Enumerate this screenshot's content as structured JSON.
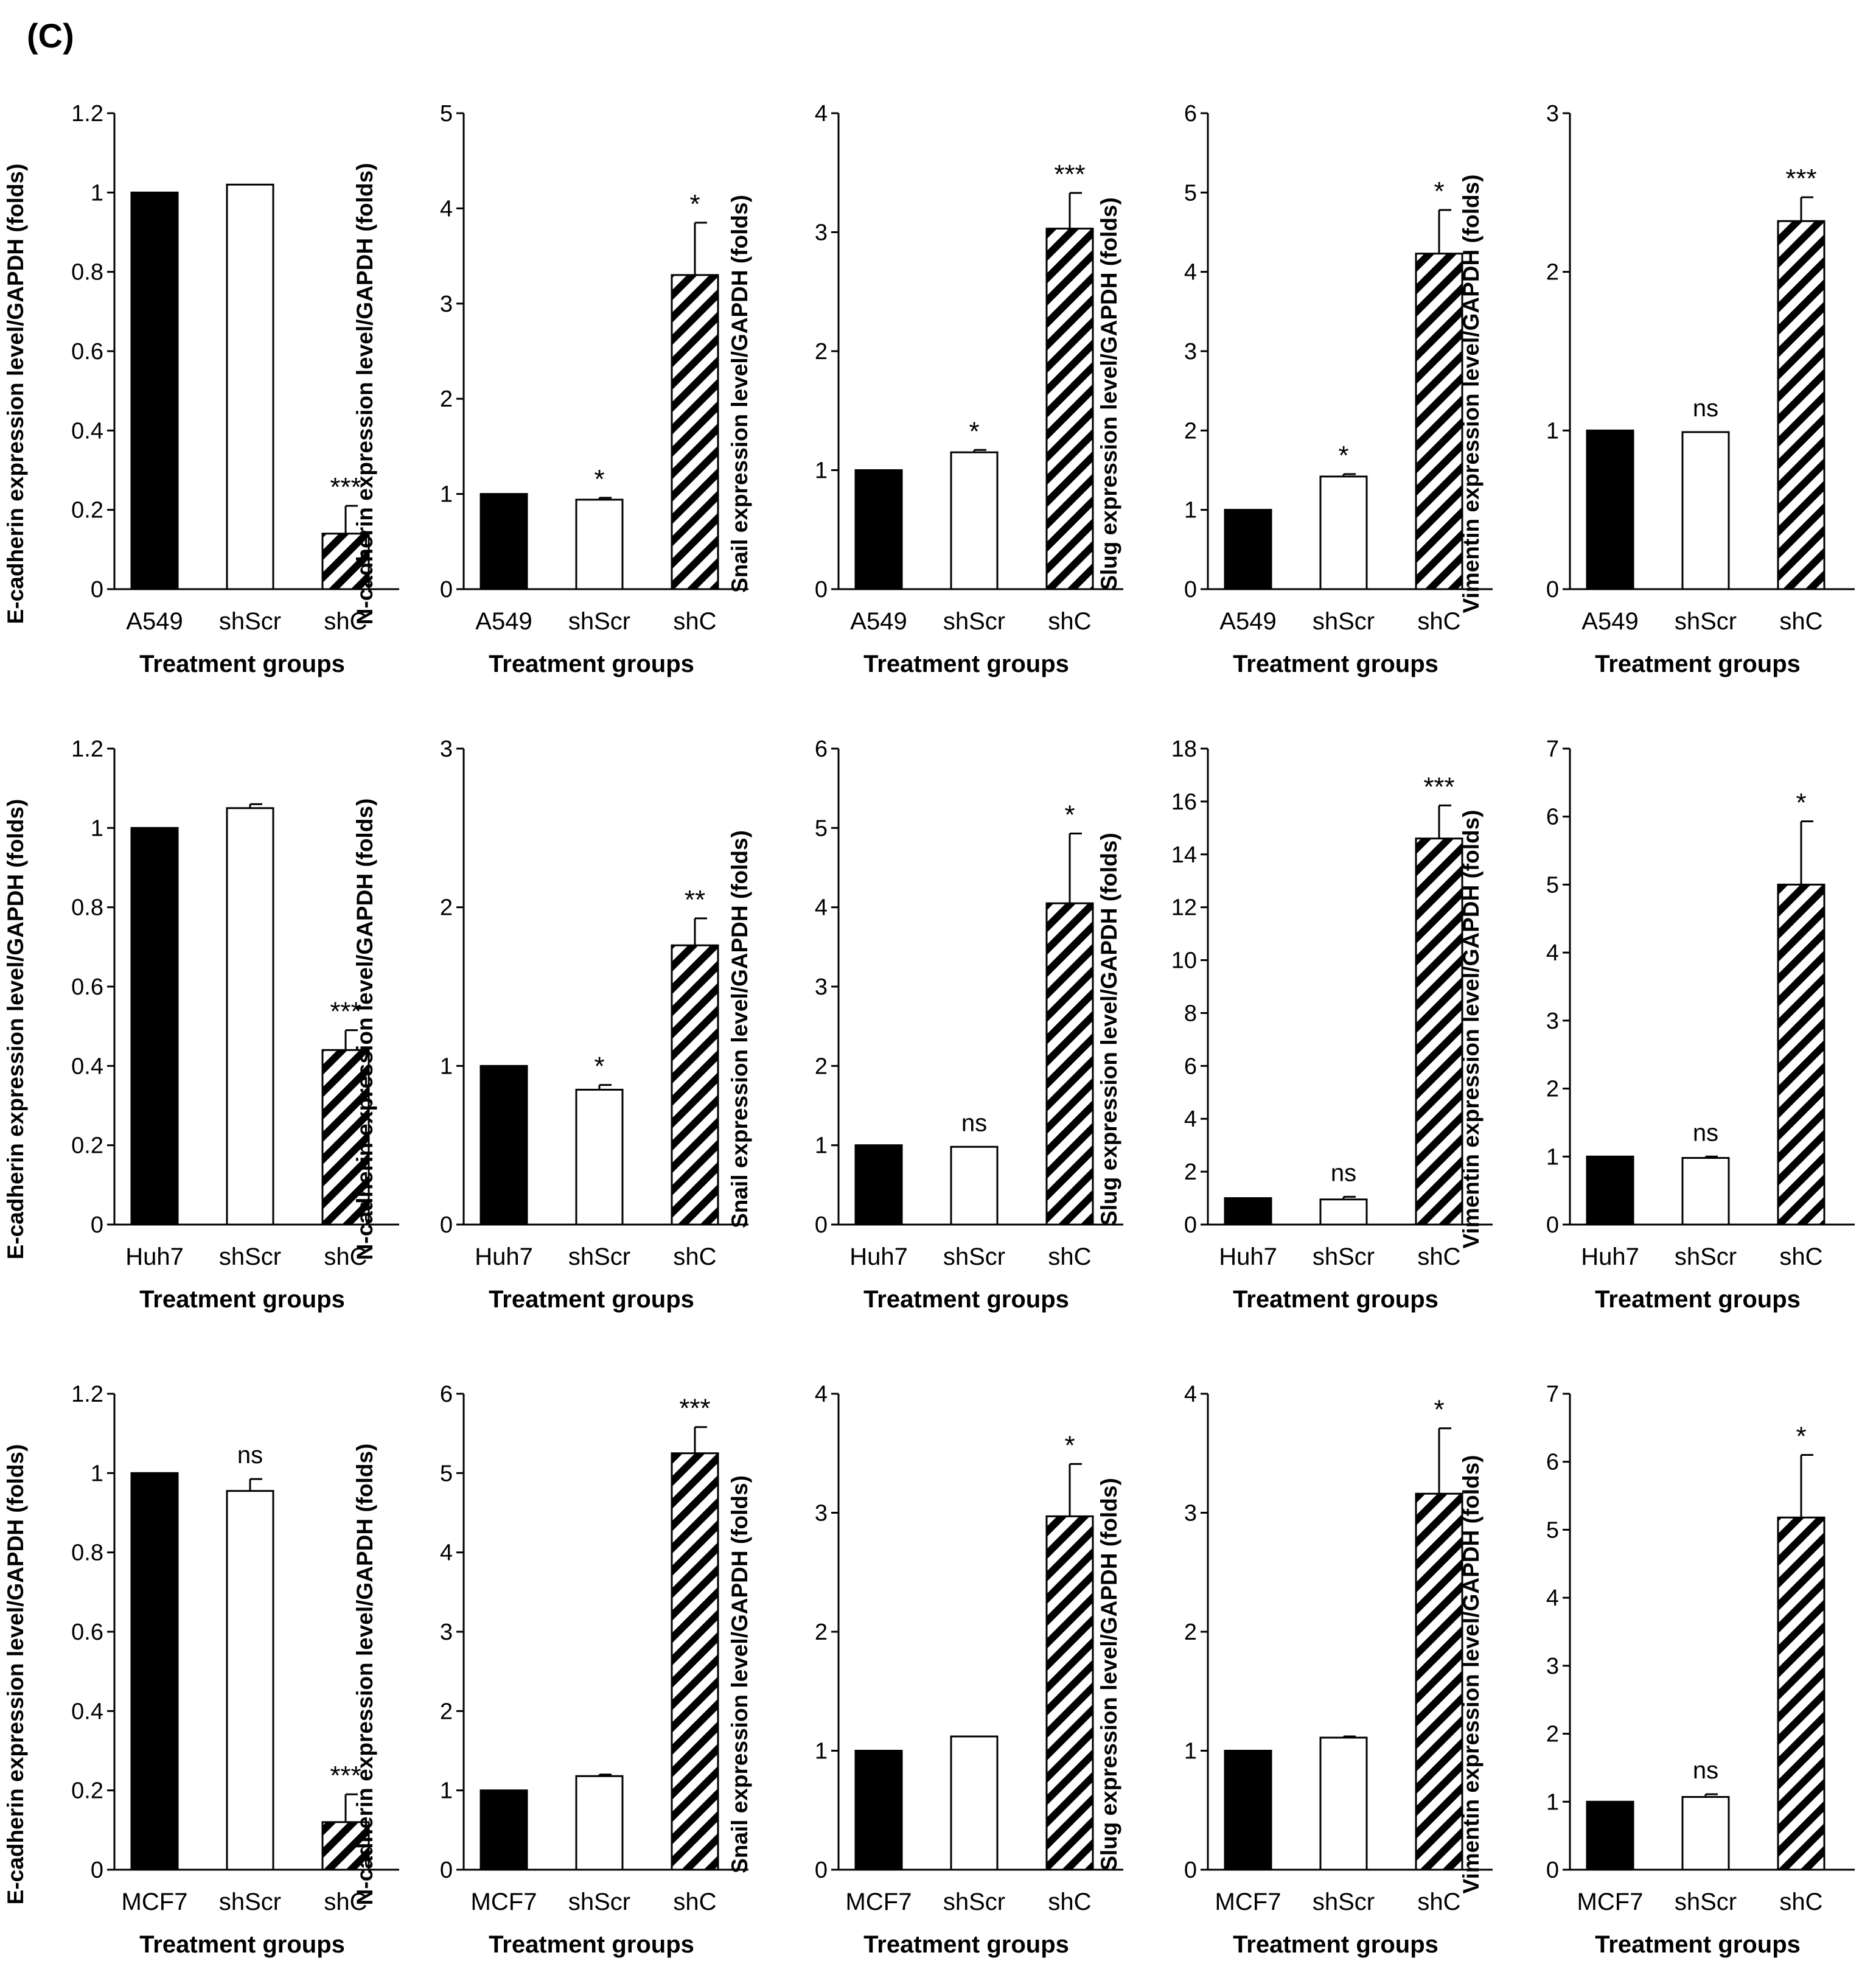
{
  "figure": {
    "panel_label": "(C)",
    "colors": {
      "ink": "#000000",
      "control": "#000000",
      "scramble": "#ffffff",
      "knockdown_hatch": "#000000"
    }
  },
  "chart_data": [
    {
      "type": "bar",
      "row": 0,
      "col": 0,
      "title": "",
      "ylabel": "E-cadherin expression level/GAPDH (folds)",
      "xlabel": "Treatment groups",
      "categories": [
        "A549",
        "shScr",
        "shC"
      ],
      "values": [
        1,
        1.02,
        0.14
      ],
      "errors": [
        0,
        0,
        0.07
      ],
      "significance": [
        "",
        "",
        "***"
      ],
      "ylim": [
        0,
        1.2
      ],
      "yticks": [
        0,
        0.2,
        0.4,
        0.6,
        0.8,
        1,
        1.2
      ],
      "ytick_labels": [
        "0",
        "0.2",
        "0.4",
        "0.6",
        "0.8",
        "1",
        "1.2"
      ]
    },
    {
      "type": "bar",
      "row": 0,
      "col": 1,
      "title": "",
      "ylabel": "N-cadherin expression level/GAPDH (folds)",
      "xlabel": "Treatment groups",
      "categories": [
        "A549",
        "shScr",
        "shC"
      ],
      "values": [
        1,
        0.94,
        3.3
      ],
      "errors": [
        0,
        0.02,
        0.55
      ],
      "significance": [
        "",
        "*",
        "*"
      ],
      "ylim": [
        0,
        5
      ],
      "yticks": [
        0,
        1,
        2,
        3,
        4,
        5
      ],
      "ytick_labels": [
        "0",
        "1",
        "2",
        "3",
        "4",
        "5"
      ]
    },
    {
      "type": "bar",
      "row": 0,
      "col": 2,
      "title": "",
      "ylabel": "Snail expression level/GAPDH (folds)",
      "xlabel": "Treatment groups",
      "categories": [
        "A549",
        "shScr",
        "shC"
      ],
      "values": [
        1,
        1.15,
        3.03
      ],
      "errors": [
        0,
        0.02,
        0.3
      ],
      "significance": [
        "",
        "*",
        "***"
      ],
      "ylim": [
        0,
        4
      ],
      "yticks": [
        0,
        1,
        2,
        3,
        4
      ],
      "ytick_labels": [
        "0",
        "1",
        "2",
        "3",
        "4"
      ]
    },
    {
      "type": "bar",
      "row": 0,
      "col": 3,
      "title": "",
      "ylabel": "Slug expression level/GAPDH (folds)",
      "xlabel": "Treatment groups",
      "categories": [
        "A549",
        "shScr",
        "shC"
      ],
      "values": [
        1,
        1.42,
        4.23
      ],
      "errors": [
        0,
        0.03,
        0.55
      ],
      "significance": [
        "",
        "*",
        "*"
      ],
      "ylim": [
        0,
        6
      ],
      "yticks": [
        0,
        1,
        2,
        3,
        4,
        5,
        6
      ],
      "ytick_labels": [
        "0",
        "1",
        "2",
        "3",
        "4",
        "5",
        "6"
      ]
    },
    {
      "type": "bar",
      "row": 0,
      "col": 4,
      "title": "",
      "ylabel": "Vimentin expression level/GAPDH (folds)",
      "xlabel": "Treatment groups",
      "categories": [
        "A549",
        "shScr",
        "shC"
      ],
      "values": [
        1,
        0.99,
        2.32
      ],
      "errors": [
        0,
        0,
        0.15
      ],
      "significance": [
        "",
        "ns",
        "***"
      ],
      "ylim": [
        0,
        3
      ],
      "yticks": [
        0,
        1,
        2,
        3
      ],
      "ytick_labels": [
        "0",
        "1",
        "2",
        "3"
      ]
    },
    {
      "type": "bar",
      "row": 1,
      "col": 0,
      "title": "",
      "ylabel": "E-cadherin expression level/GAPDH (folds)",
      "xlabel": "Treatment groups",
      "categories": [
        "Huh7",
        "shScr",
        "shC"
      ],
      "values": [
        1,
        1.05,
        0.44
      ],
      "errors": [
        0,
        0.01,
        0.05
      ],
      "significance": [
        "",
        "",
        "***"
      ],
      "ylim": [
        0,
        1.2
      ],
      "yticks": [
        0,
        0.2,
        0.4,
        0.6,
        0.8,
        1,
        1.2
      ],
      "ytick_labels": [
        "0",
        "0.2",
        "0.4",
        "0.6",
        "0.8",
        "1",
        "1.2"
      ]
    },
    {
      "type": "bar",
      "row": 1,
      "col": 1,
      "title": "",
      "ylabel": "N-cadherin expression level/GAPDH (folds)",
      "xlabel": "Treatment groups",
      "categories": [
        "Huh7",
        "shScr",
        "shC"
      ],
      "values": [
        1,
        0.85,
        1.76
      ],
      "errors": [
        0,
        0.03,
        0.17
      ],
      "significance": [
        "",
        "*",
        "**"
      ],
      "ylim": [
        0,
        3
      ],
      "yticks": [
        0,
        1,
        2,
        3
      ],
      "ytick_labels": [
        "0",
        "1",
        "2",
        "3"
      ]
    },
    {
      "type": "bar",
      "row": 1,
      "col": 2,
      "title": "",
      "ylabel": "Snail expression level/GAPDH (folds)",
      "xlabel": "Treatment groups",
      "categories": [
        "Huh7",
        "shScr",
        "shC"
      ],
      "values": [
        1,
        0.98,
        4.05
      ],
      "errors": [
        0,
        0,
        0.88
      ],
      "significance": [
        "",
        "ns",
        "*"
      ],
      "ylim": [
        0,
        6
      ],
      "yticks": [
        0,
        1,
        2,
        3,
        4,
        5,
        6
      ],
      "ytick_labels": [
        "0",
        "1",
        "2",
        "3",
        "4",
        "5",
        "6"
      ]
    },
    {
      "type": "bar",
      "row": 1,
      "col": 3,
      "title": "",
      "ylabel": "Slug expression level/GAPDH (folds)",
      "xlabel": "Treatment groups",
      "categories": [
        "Huh7",
        "shScr",
        "shC"
      ],
      "values": [
        1,
        0.95,
        14.6
      ],
      "errors": [
        0,
        0.1,
        1.25
      ],
      "significance": [
        "",
        "ns",
        "***"
      ],
      "ylim": [
        0,
        18
      ],
      "yticks": [
        0,
        2,
        4,
        6,
        8,
        10,
        12,
        14,
        16,
        18
      ],
      "ytick_labels": [
        "0",
        "2",
        "4",
        "6",
        "8",
        "10",
        "12",
        "14",
        "16",
        "18"
      ]
    },
    {
      "type": "bar",
      "row": 1,
      "col": 4,
      "title": "",
      "ylabel": "Vimentin expression level/GAPDH (folds)",
      "xlabel": "Treatment groups",
      "categories": [
        "Huh7",
        "shScr",
        "shC"
      ],
      "values": [
        1,
        0.98,
        5.0
      ],
      "errors": [
        0,
        0.02,
        0.93
      ],
      "significance": [
        "",
        "ns",
        "*"
      ],
      "ylim": [
        0,
        7
      ],
      "yticks": [
        0,
        1,
        2,
        3,
        4,
        5,
        6,
        7
      ],
      "ytick_labels": [
        "0",
        "1",
        "2",
        "3",
        "4",
        "5",
        "6",
        "7"
      ]
    },
    {
      "type": "bar",
      "row": 2,
      "col": 0,
      "title": "",
      "ylabel": "E-cadherin expression level/GAPDH (folds)",
      "xlabel": "Treatment groups",
      "categories": [
        "MCF7",
        "shScr",
        "shC"
      ],
      "values": [
        1,
        0.955,
        0.12
      ],
      "errors": [
        0,
        0.03,
        0.07
      ],
      "significance": [
        "",
        "ns",
        "***"
      ],
      "ylim": [
        0,
        1.2
      ],
      "yticks": [
        0,
        0.2,
        0.4,
        0.6,
        0.8,
        1,
        1.2
      ],
      "ytick_labels": [
        "0",
        "0.2",
        "0.4",
        "0.6",
        "0.8",
        "1",
        "1.2"
      ]
    },
    {
      "type": "bar",
      "row": 2,
      "col": 1,
      "title": "",
      "ylabel": "N-cadherin expression level/GAPDH (folds)",
      "xlabel": "Treatment groups",
      "categories": [
        "MCF7",
        "shScr",
        "shC"
      ],
      "values": [
        1,
        1.18,
        5.25
      ],
      "errors": [
        0,
        0.02,
        0.33
      ],
      "significance": [
        "",
        "",
        "***"
      ],
      "ylim": [
        0,
        6
      ],
      "yticks": [
        0,
        1,
        2,
        3,
        4,
        5,
        6
      ],
      "ytick_labels": [
        "0",
        "1",
        "2",
        "3",
        "4",
        "5",
        "6"
      ]
    },
    {
      "type": "bar",
      "row": 2,
      "col": 2,
      "title": "",
      "ylabel": "Snail expression level/GAPDH (folds)",
      "xlabel": "Treatment groups",
      "categories": [
        "MCF7",
        "shScr",
        "shC"
      ],
      "values": [
        1,
        1.12,
        2.97
      ],
      "errors": [
        0,
        0,
        0.44
      ],
      "significance": [
        "",
        "",
        "*"
      ],
      "ylim": [
        0,
        4
      ],
      "yticks": [
        0,
        1,
        2,
        3,
        4
      ],
      "ytick_labels": [
        "0",
        "1",
        "2",
        "3",
        "4"
      ]
    },
    {
      "type": "bar",
      "row": 2,
      "col": 3,
      "title": "",
      "ylabel": "Slug expression level/GAPDH (folds)",
      "xlabel": "Treatment groups",
      "categories": [
        "MCF7",
        "shScr",
        "shC"
      ],
      "values": [
        1,
        1.11,
        3.16
      ],
      "errors": [
        0,
        0.01,
        0.55
      ],
      "significance": [
        "",
        "",
        "*"
      ],
      "ylim": [
        0,
        4
      ],
      "yticks": [
        0,
        1,
        2,
        3,
        4
      ],
      "ytick_labels": [
        "0",
        "1",
        "2",
        "3",
        "4"
      ]
    },
    {
      "type": "bar",
      "row": 2,
      "col": 4,
      "title": "",
      "ylabel": "Vimentin expression level/GAPDH (folds)",
      "xlabel": "Treatment groups",
      "categories": [
        "MCF7",
        "shScr",
        "shC"
      ],
      "values": [
        1,
        1.07,
        5.18
      ],
      "errors": [
        0,
        0.04,
        0.92
      ],
      "significance": [
        "",
        "ns",
        "*"
      ],
      "ylim": [
        0,
        7
      ],
      "yticks": [
        0,
        1,
        2,
        3,
        4,
        5,
        6,
        7
      ],
      "ytick_labels": [
        "0",
        "1",
        "2",
        "3",
        "4",
        "5",
        "6",
        "7"
      ]
    }
  ]
}
